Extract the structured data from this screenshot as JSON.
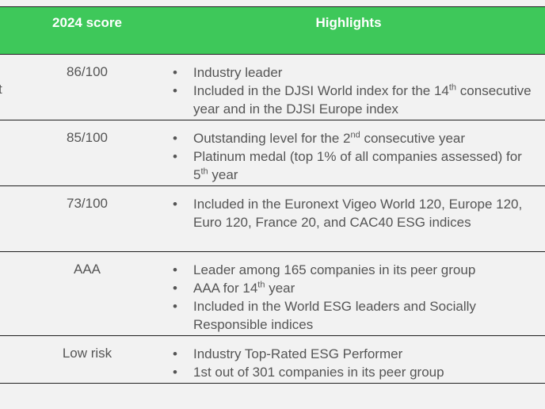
{
  "header": {
    "score_label": "2024 score",
    "highlights_label": "Highlights"
  },
  "rows": [
    {
      "score": "86/100",
      "cut_text": "t",
      "bullets": [
        [
          "Industry leader"
        ],
        [
          "Included in the DJSI World index for the 14",
          {
            "sup": "th"
          },
          " consecutive year and in the DJSI Europe index"
        ]
      ]
    },
    {
      "score": "85/100",
      "bullets": [
        [
          "Outstanding level for the 2",
          {
            "sup": "nd"
          },
          " consecutive year"
        ],
        [
          "Platinum medal (top 1% of all companies assessed) for 5",
          {
            "sup": "th"
          },
          " year"
        ]
      ]
    },
    {
      "score": "73/100",
      "bullets": [
        [
          "Included in the Euronext Vigeo World 120, Europe 120, Euro 120, France 20, and CAC40 ESG indices"
        ]
      ]
    },
    {
      "score": "AAA",
      "bullets": [
        [
          "Leader among 165 companies in its peer group"
        ],
        [
          "AAA for 14",
          {
            "sup": "th"
          },
          " year"
        ],
        [
          "Included in the World ESG leaders and Socially Responsible indices"
        ]
      ]
    },
    {
      "score": "Low risk",
      "bullets": [
        [
          "Industry Top-Rated ESG Performer"
        ],
        [
          "1st out of 301 companies in its peer group"
        ]
      ]
    }
  ]
}
